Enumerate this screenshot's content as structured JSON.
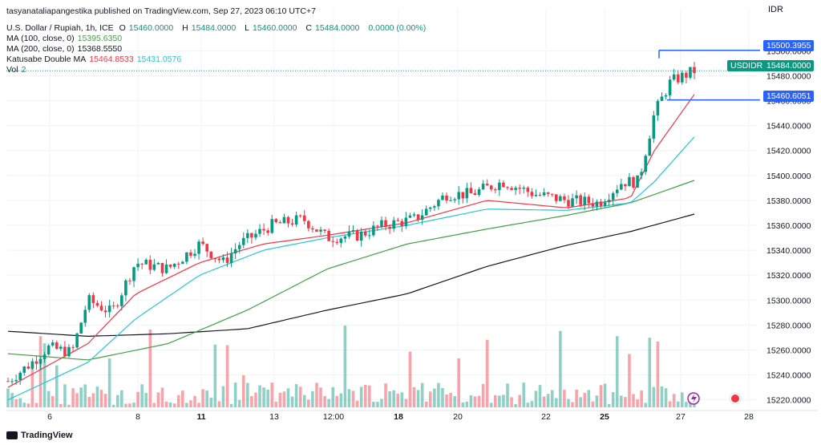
{
  "publisher_line": "tasyanataliapangestika published on TradingView.com, Sep 27, 2023 06:10 UTC+7",
  "symbol": {
    "name": "U.S. Dollar / Rupiah, 1h, ICE",
    "o_label": "O",
    "o": "15460.0000",
    "h_label": "H",
    "h": "15484.0000",
    "l_label": "L",
    "l": "15460.0000",
    "c_label": "C",
    "c": "15484.0000",
    "change": "0.0000 (0.00%)"
  },
  "indicators": {
    "ma100_label": "MA (100, close, 0)",
    "ma100_value": "15395.6350",
    "ma200_label": "MA (200, close, 0)",
    "ma200_value": "15368.5550",
    "katusabe_label": "Katusabe Double MA",
    "katusabe_v1": "15464.8533",
    "katusabe_v2": "15431.0576",
    "vol_label": "Vol",
    "vol_value": "2"
  },
  "currency": "IDR",
  "price_tags": {
    "high": "15500.3955",
    "symbol_tag": "USDIDR",
    "last": "15484.0000",
    "low": "15460.6051"
  },
  "footer": {
    "brand": "TradingView"
  },
  "colors": {
    "up": "#089981",
    "down": "#f23645",
    "ma100": "#43a047",
    "ma200": "#131722",
    "kat_fast": "#f23645",
    "kat_slow": "#26c6da",
    "line_blue": "#2962ff"
  },
  "chart_data": {
    "type": "candlestick",
    "y_ticks": [
      15220,
      15240,
      15260,
      15280,
      15300,
      15320,
      15340,
      15360,
      15380,
      15400,
      15420,
      15440,
      15460,
      15480,
      15500
    ],
    "ylim": [
      15214,
      15515
    ],
    "x_ticks": [
      "6",
      "8",
      "11",
      "13",
      "12:00",
      "18",
      "20",
      "22",
      "25",
      "27",
      "28"
    ],
    "price_segments": [
      {
        "t": 0,
        "v": 15235
      },
      {
        "t": 3,
        "v": 15250
      },
      {
        "t": 5,
        "v": 15262
      },
      {
        "t": 8,
        "v": 15258
      },
      {
        "t": 10,
        "v": 15300
      },
      {
        "t": 13,
        "v": 15290
      },
      {
        "t": 16,
        "v": 15330
      },
      {
        "t": 20,
        "v": 15325
      },
      {
        "t": 24,
        "v": 15345
      },
      {
        "t": 27,
        "v": 15330
      },
      {
        "t": 29,
        "v": 15345
      },
      {
        "t": 33,
        "v": 15360
      },
      {
        "t": 37,
        "v": 15365
      },
      {
        "t": 40,
        "v": 15350
      },
      {
        "t": 44,
        "v": 15352
      },
      {
        "t": 47,
        "v": 15360
      },
      {
        "t": 51,
        "v": 15365
      },
      {
        "t": 55,
        "v": 15385
      },
      {
        "t": 58,
        "v": 15385
      },
      {
        "t": 62,
        "v": 15395
      },
      {
        "t": 66,
        "v": 15385
      },
      {
        "t": 70,
        "v": 15380
      },
      {
        "t": 74,
        "v": 15378
      },
      {
        "t": 77,
        "v": 15395
      },
      {
        "t": 79,
        "v": 15395
      },
      {
        "t": 81,
        "v": 15450
      },
      {
        "t": 83,
        "v": 15475
      },
      {
        "t": 86,
        "v": 15484
      }
    ],
    "ma100": [
      {
        "t": 0,
        "v": 15257
      },
      {
        "t": 10,
        "v": 15252
      },
      {
        "t": 20,
        "v": 15265
      },
      {
        "t": 30,
        "v": 15292
      },
      {
        "t": 40,
        "v": 15325
      },
      {
        "t": 50,
        "v": 15345
      },
      {
        "t": 60,
        "v": 15357
      },
      {
        "t": 70,
        "v": 15368
      },
      {
        "t": 78,
        "v": 15378
      },
      {
        "t": 86,
        "v": 15396
      }
    ],
    "ma200": [
      {
        "t": 0,
        "v": 15275
      },
      {
        "t": 10,
        "v": 15271
      },
      {
        "t": 20,
        "v": 15273
      },
      {
        "t": 30,
        "v": 15277
      },
      {
        "t": 40,
        "v": 15292
      },
      {
        "t": 50,
        "v": 15305
      },
      {
        "t": 60,
        "v": 15327
      },
      {
        "t": 70,
        "v": 15344
      },
      {
        "t": 78,
        "v": 15355
      },
      {
        "t": 86,
        "v": 15369
      }
    ],
    "kat_fast": [
      {
        "t": 0,
        "v": 15230
      },
      {
        "t": 10,
        "v": 15265
      },
      {
        "t": 16,
        "v": 15305
      },
      {
        "t": 24,
        "v": 15330
      },
      {
        "t": 32,
        "v": 15345
      },
      {
        "t": 40,
        "v": 15352
      },
      {
        "t": 50,
        "v": 15362
      },
      {
        "t": 60,
        "v": 15380
      },
      {
        "t": 70,
        "v": 15374
      },
      {
        "t": 78,
        "v": 15382
      },
      {
        "t": 81,
        "v": 15420
      },
      {
        "t": 86,
        "v": 15465
      }
    ],
    "kat_slow": [
      {
        "t": 0,
        "v": 15220
      },
      {
        "t": 10,
        "v": 15250
      },
      {
        "t": 16,
        "v": 15285
      },
      {
        "t": 24,
        "v": 15320
      },
      {
        "t": 32,
        "v": 15340
      },
      {
        "t": 40,
        "v": 15350
      },
      {
        "t": 50,
        "v": 15360
      },
      {
        "t": 60,
        "v": 15373
      },
      {
        "t": 70,
        "v": 15372
      },
      {
        "t": 78,
        "v": 15378
      },
      {
        "t": 81,
        "v": 15395
      },
      {
        "t": 86,
        "v": 15431
      }
    ]
  }
}
